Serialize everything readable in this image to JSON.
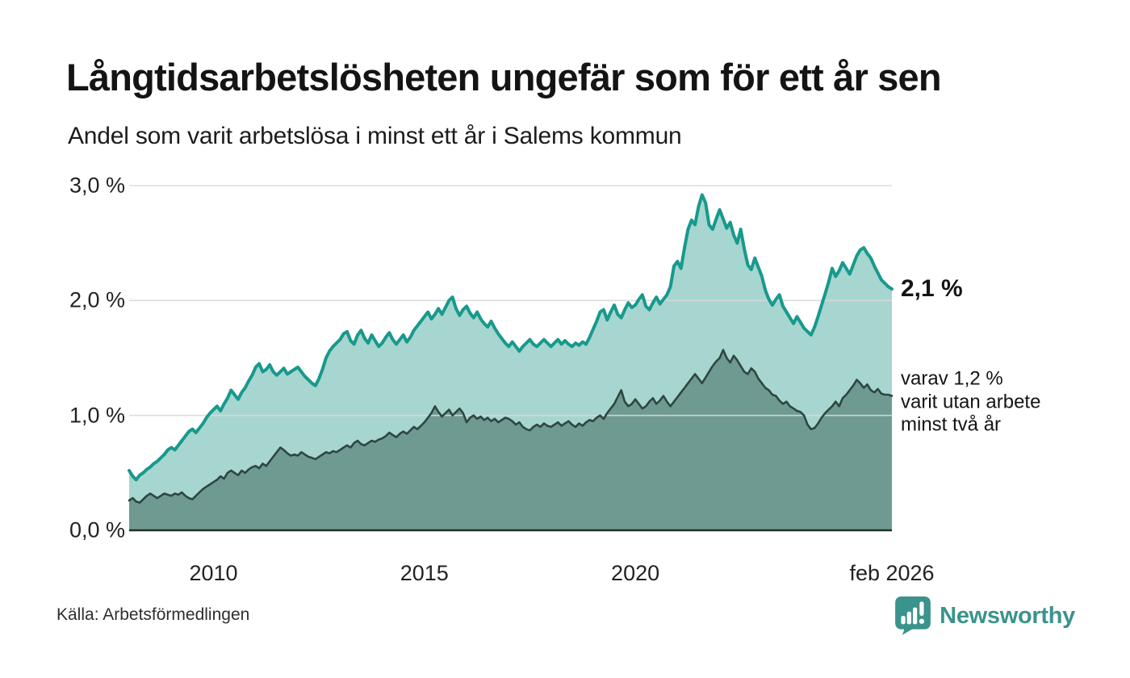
{
  "header": {
    "title": "Långtidsarbetslösheten ungefär som för ett år sen",
    "subtitle": "Andel som varit arbetslösa i minst ett år i Salems kommun"
  },
  "chart_data": {
    "type": "area",
    "title": "Långtidsarbetslösheten ungefär som för ett år sen",
    "subtitle": "Andel som varit arbetslösa i minst ett år i Salems kommun",
    "unit": "%",
    "x_start_year": 2008.0,
    "x_end_year": 2026.0833,
    "x_end_label": "feb 2026",
    "ylim": [
      0,
      3.0
    ],
    "grid": true,
    "y_ticks": [
      {
        "value": 3.0,
        "label": "3,0 %"
      },
      {
        "value": 2.0,
        "label": "2,0 %"
      },
      {
        "value": 1.0,
        "label": "1,0 %"
      },
      {
        "value": 0.0,
        "label": "0,0 %"
      }
    ],
    "x_ticks": [
      {
        "value": 2010.0,
        "label": "2010"
      },
      {
        "value": 2015.0,
        "label": "2015"
      },
      {
        "value": 2020.0,
        "label": "2020"
      },
      {
        "value": 2026.0833,
        "label": "feb 2026"
      }
    ],
    "series": [
      {
        "name": "Andel arbetslösa minst ett år",
        "frequency": "monthly",
        "last_value_label": "2,1 %",
        "values": [
          0.52,
          0.47,
          0.44,
          0.48,
          0.5,
          0.53,
          0.55,
          0.58,
          0.6,
          0.63,
          0.66,
          0.7,
          0.72,
          0.7,
          0.74,
          0.78,
          0.82,
          0.86,
          0.88,
          0.85,
          0.89,
          0.93,
          0.98,
          1.02,
          1.05,
          1.08,
          1.04,
          1.1,
          1.15,
          1.22,
          1.18,
          1.14,
          1.2,
          1.24,
          1.3,
          1.35,
          1.42,
          1.45,
          1.38,
          1.4,
          1.44,
          1.38,
          1.35,
          1.38,
          1.41,
          1.36,
          1.38,
          1.4,
          1.42,
          1.38,
          1.34,
          1.31,
          1.28,
          1.26,
          1.32,
          1.4,
          1.5,
          1.56,
          1.6,
          1.63,
          1.66,
          1.71,
          1.73,
          1.65,
          1.62,
          1.7,
          1.74,
          1.67,
          1.63,
          1.7,
          1.65,
          1.6,
          1.63,
          1.68,
          1.72,
          1.66,
          1.62,
          1.66,
          1.7,
          1.64,
          1.68,
          1.74,
          1.78,
          1.82,
          1.86,
          1.9,
          1.84,
          1.88,
          1.93,
          1.88,
          1.94,
          2.0,
          2.03,
          1.93,
          1.87,
          1.92,
          1.95,
          1.89,
          1.85,
          1.9,
          1.84,
          1.8,
          1.77,
          1.82,
          1.76,
          1.71,
          1.67,
          1.63,
          1.6,
          1.64,
          1.6,
          1.56,
          1.6,
          1.63,
          1.66,
          1.62,
          1.6,
          1.63,
          1.66,
          1.63,
          1.6,
          1.63,
          1.66,
          1.62,
          1.65,
          1.62,
          1.6,
          1.63,
          1.61,
          1.64,
          1.62,
          1.68,
          1.75,
          1.82,
          1.9,
          1.92,
          1.83,
          1.9,
          1.96,
          1.88,
          1.85,
          1.92,
          1.98,
          1.94,
          1.96,
          2.01,
          2.05,
          1.95,
          1.92,
          1.98,
          2.03,
          1.97,
          2.01,
          2.05,
          2.12,
          2.3,
          2.34,
          2.28,
          2.46,
          2.62,
          2.7,
          2.66,
          2.82,
          2.92,
          2.85,
          2.66,
          2.62,
          2.71,
          2.79,
          2.71,
          2.63,
          2.68,
          2.57,
          2.5,
          2.62,
          2.45,
          2.31,
          2.27,
          2.37,
          2.29,
          2.21,
          2.09,
          2.01,
          1.96,
          2.01,
          2.05,
          1.95,
          1.9,
          1.85,
          1.8,
          1.86,
          1.81,
          1.76,
          1.73,
          1.7,
          1.77,
          1.86,
          1.96,
          2.06,
          2.16,
          2.28,
          2.21,
          2.26,
          2.33,
          2.28,
          2.23,
          2.31,
          2.39,
          2.44,
          2.46,
          2.41,
          2.37,
          2.3,
          2.24,
          2.18,
          2.15,
          2.12,
          2.1
        ]
      },
      {
        "name": "Varav arbetslösa minst två år",
        "frequency": "monthly",
        "last_value_label": "varav 1,2 %",
        "values": [
          0.26,
          0.28,
          0.25,
          0.24,
          0.27,
          0.3,
          0.32,
          0.3,
          0.28,
          0.3,
          0.32,
          0.31,
          0.3,
          0.32,
          0.31,
          0.33,
          0.3,
          0.28,
          0.27,
          0.3,
          0.33,
          0.36,
          0.38,
          0.4,
          0.42,
          0.44,
          0.47,
          0.45,
          0.5,
          0.52,
          0.5,
          0.48,
          0.52,
          0.5,
          0.53,
          0.55,
          0.56,
          0.54,
          0.58,
          0.56,
          0.6,
          0.64,
          0.68,
          0.72,
          0.7,
          0.67,
          0.65,
          0.66,
          0.65,
          0.68,
          0.66,
          0.64,
          0.63,
          0.62,
          0.64,
          0.66,
          0.68,
          0.67,
          0.69,
          0.68,
          0.7,
          0.72,
          0.74,
          0.72,
          0.76,
          0.78,
          0.75,
          0.74,
          0.76,
          0.78,
          0.77,
          0.79,
          0.8,
          0.82,
          0.85,
          0.83,
          0.81,
          0.84,
          0.86,
          0.84,
          0.87,
          0.9,
          0.88,
          0.91,
          0.94,
          0.98,
          1.02,
          1.08,
          1.03,
          0.99,
          1.02,
          1.05,
          1.0,
          1.03,
          1.06,
          1.02,
          0.94,
          0.98,
          1.0,
          0.97,
          0.99,
          0.96,
          0.98,
          0.95,
          0.97,
          0.94,
          0.96,
          0.98,
          0.97,
          0.95,
          0.92,
          0.94,
          0.9,
          0.88,
          0.87,
          0.9,
          0.92,
          0.9,
          0.93,
          0.91,
          0.9,
          0.92,
          0.94,
          0.91,
          0.93,
          0.95,
          0.92,
          0.9,
          0.93,
          0.91,
          0.94,
          0.96,
          0.95,
          0.98,
          1.0,
          0.97,
          1.02,
          1.06,
          1.1,
          1.16,
          1.22,
          1.12,
          1.08,
          1.1,
          1.14,
          1.1,
          1.06,
          1.08,
          1.12,
          1.15,
          1.1,
          1.13,
          1.17,
          1.12,
          1.08,
          1.12,
          1.16,
          1.2,
          1.24,
          1.28,
          1.32,
          1.36,
          1.32,
          1.28,
          1.33,
          1.38,
          1.43,
          1.47,
          1.5,
          1.57,
          1.5,
          1.46,
          1.52,
          1.48,
          1.43,
          1.38,
          1.36,
          1.41,
          1.38,
          1.32,
          1.28,
          1.24,
          1.22,
          1.18,
          1.17,
          1.13,
          1.1,
          1.12,
          1.08,
          1.06,
          1.04,
          1.03,
          1.0,
          0.92,
          0.88,
          0.89,
          0.93,
          0.98,
          1.02,
          1.05,
          1.08,
          1.12,
          1.08,
          1.15,
          1.18,
          1.22,
          1.26,
          1.31,
          1.28,
          1.24,
          1.27,
          1.22,
          1.2,
          1.23,
          1.19,
          1.18,
          1.18,
          1.17
        ]
      }
    ],
    "annotations": {
      "primary": "2,1 %",
      "secondary_line1": "varav 1,2 %",
      "secondary_line2": "varit utan arbete",
      "secondary_line3": "minst två år"
    },
    "legend_position": "end-of-line"
  },
  "footer": {
    "source": "Källa: Arbetsförmedlingen",
    "brand": "Newsworthy"
  },
  "colors": {
    "line_total": "#18998d",
    "fill_total": "#a6d6cf",
    "fill_two_year": "#6f9a92",
    "line_two_year": "#2d4740",
    "gridline": "#d9d9d9",
    "axis_line": "#242e2a",
    "brand_teal": "#3a938c"
  }
}
